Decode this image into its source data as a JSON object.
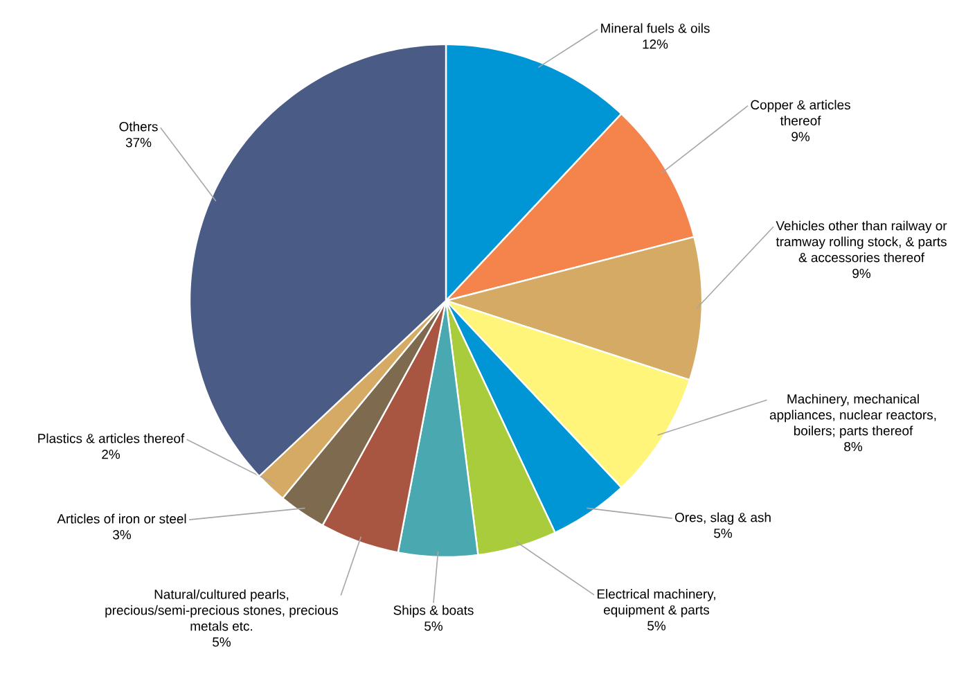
{
  "chart_data": {
    "type": "pie",
    "categories": [
      "Mineral fuels & oils",
      "Copper & articles thereof",
      "Vehicles other than railway or tramway rolling stock, & parts & accessories thereof",
      "Machinery, mechanical appliances, nuclear reactors, boilers; parts thereof",
      "Ores, slag & ash",
      "Electrical machinery, equipment & parts",
      "Ships & boats",
      "Natural/cultured pearls, precious/semi-precious stones, precious metals etc.",
      "Articles of iron or steel",
      "Plastics & articles thereof",
      "Others"
    ],
    "values": [
      12,
      9,
      9,
      8,
      5,
      5,
      5,
      5,
      3,
      2,
      37
    ],
    "value_labels": [
      "12%",
      "9%",
      "9%",
      "8%",
      "5%",
      "5%",
      "5%",
      "5%",
      "3%",
      "2%",
      "37%"
    ],
    "colors": [
      "#0096d6",
      "#f5844c",
      "#d4aa64",
      "#fff57a",
      "#0096d6",
      "#a8cc3c",
      "#4aa8b0",
      "#a85641",
      "#7d6a4f",
      "#d4aa64",
      "#4a5b85"
    ]
  }
}
